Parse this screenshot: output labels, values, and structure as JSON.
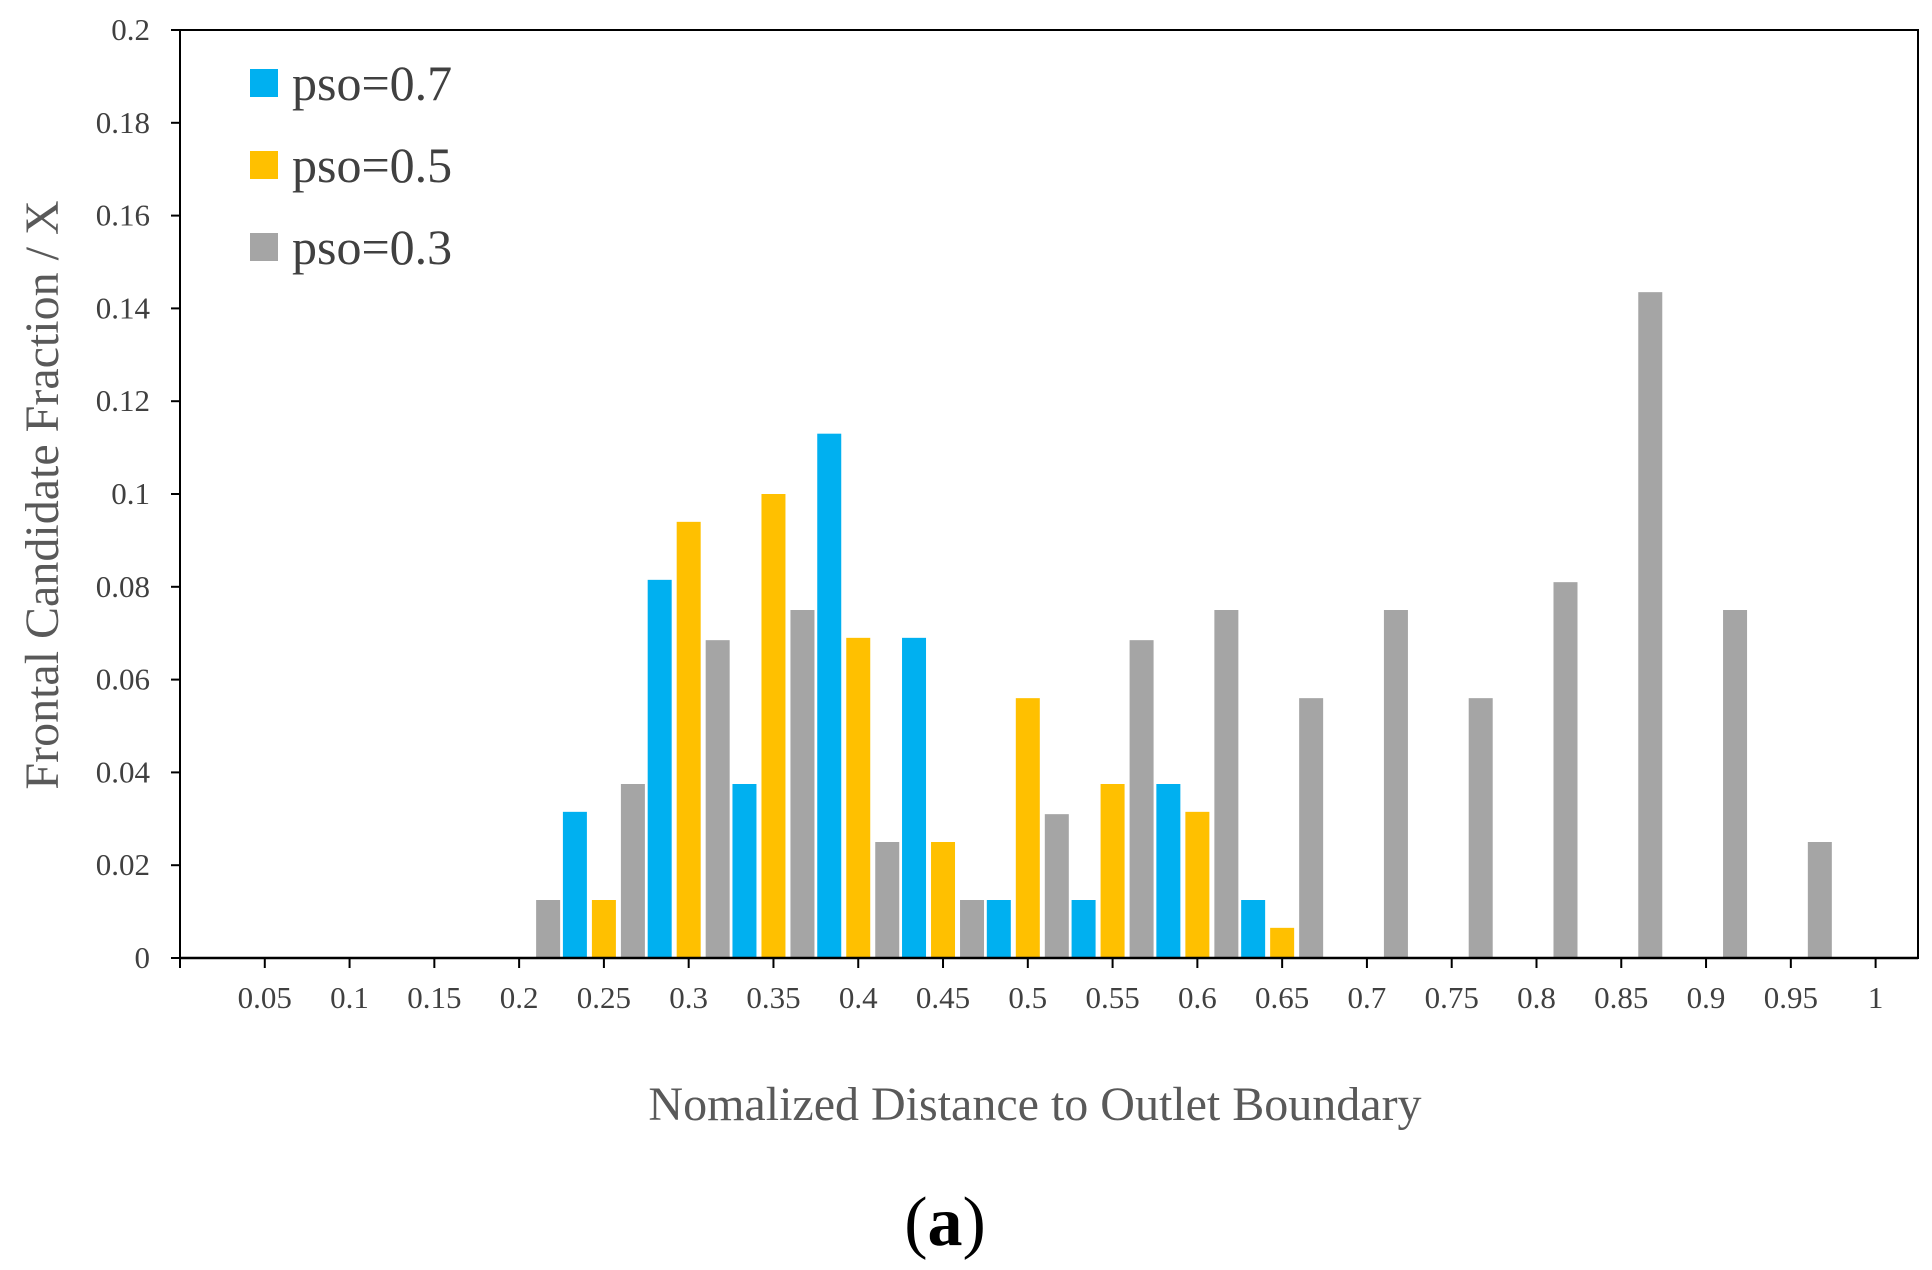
{
  "chart_data": {
    "type": "bar",
    "title": "",
    "xlabel": "Nomalized Distance to Outlet Boundary",
    "ylabel": "Frontal Candidate Fraction / X",
    "ylim": [
      0,
      0.2
    ],
    "yticks": [
      "0",
      "0.02",
      "0.04",
      "0.06",
      "0.08",
      "0.1",
      "0.12",
      "0.14",
      "0.16",
      "0.18",
      "0.2"
    ],
    "categories": [
      "0.05",
      "0.1",
      "0.15",
      "0.2",
      "0.25",
      "0.3",
      "0.35",
      "0.4",
      "0.45",
      "0.5",
      "0.55",
      "0.6",
      "0.65",
      "0.7",
      "0.75",
      "0.8",
      "0.85",
      "0.9",
      "0.95",
      "1"
    ],
    "legend_position": "top-left",
    "grid": false,
    "series": [
      {
        "name": "pso=0.7",
        "color": "#00b0f0",
        "values": [
          0,
          0,
          0,
          0,
          0.0315,
          0.0815,
          0.0375,
          0.113,
          0.069,
          0.0125,
          0.0125,
          0.0375,
          0.0125,
          0,
          0,
          0,
          0,
          0,
          0,
          0
        ]
      },
      {
        "name": "pso=0.5",
        "color": "#ffc000",
        "values": [
          0,
          0,
          0,
          0,
          0.0125,
          0.094,
          0.1,
          0.069,
          0.025,
          0.056,
          0.0375,
          0.0315,
          0.0065,
          0,
          0,
          0,
          0,
          0,
          0,
          0
        ]
      },
      {
        "name": "pso=0.3",
        "color": "#a5a5a5",
        "values": [
          0,
          0,
          0,
          0.0125,
          0.0375,
          0.0685,
          0.075,
          0.025,
          0.0125,
          0.031,
          0.0685,
          0.075,
          0.056,
          0.075,
          0.056,
          0.081,
          0.1435,
          0.075,
          0.025,
          0
        ]
      }
    ]
  },
  "caption": {
    "open": "(",
    "letter": "a",
    "close": ")"
  }
}
